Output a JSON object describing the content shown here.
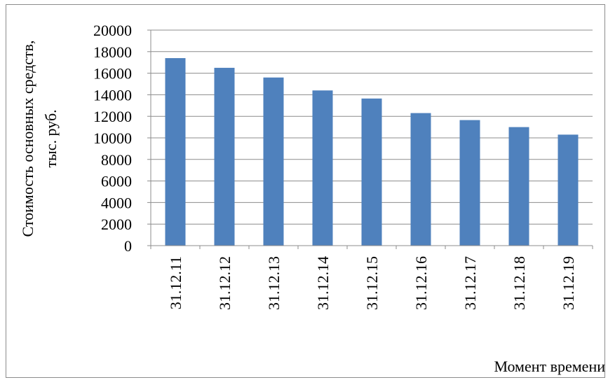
{
  "chart_data": {
    "type": "bar",
    "categories": [
      "31.12.11",
      "31.12.12",
      "31.12.13",
      "31.12.14",
      "31.12.15",
      "31.12.16",
      "31.12.17",
      "31.12.18",
      "31.12.19"
    ],
    "values": [
      17400,
      16500,
      15600,
      14400,
      13650,
      12300,
      11650,
      11000,
      10300
    ],
    "title": "",
    "xlabel": "Момент времени",
    "ylabel_line1": "Стоимость основных средств,",
    "ylabel_line2": "тыс. руб.",
    "ylim": [
      0,
      20000
    ],
    "yticks": [
      "0",
      "2000",
      "4000",
      "6000",
      "8000",
      "10000",
      "12000",
      "14000",
      "16000",
      "18000",
      "20000"
    ],
    "grid": "horizontal",
    "legend": "none",
    "colors": {
      "bar": "#4f81bd",
      "grid": "#8c8c8c",
      "axis": "#8c8c8c"
    }
  }
}
